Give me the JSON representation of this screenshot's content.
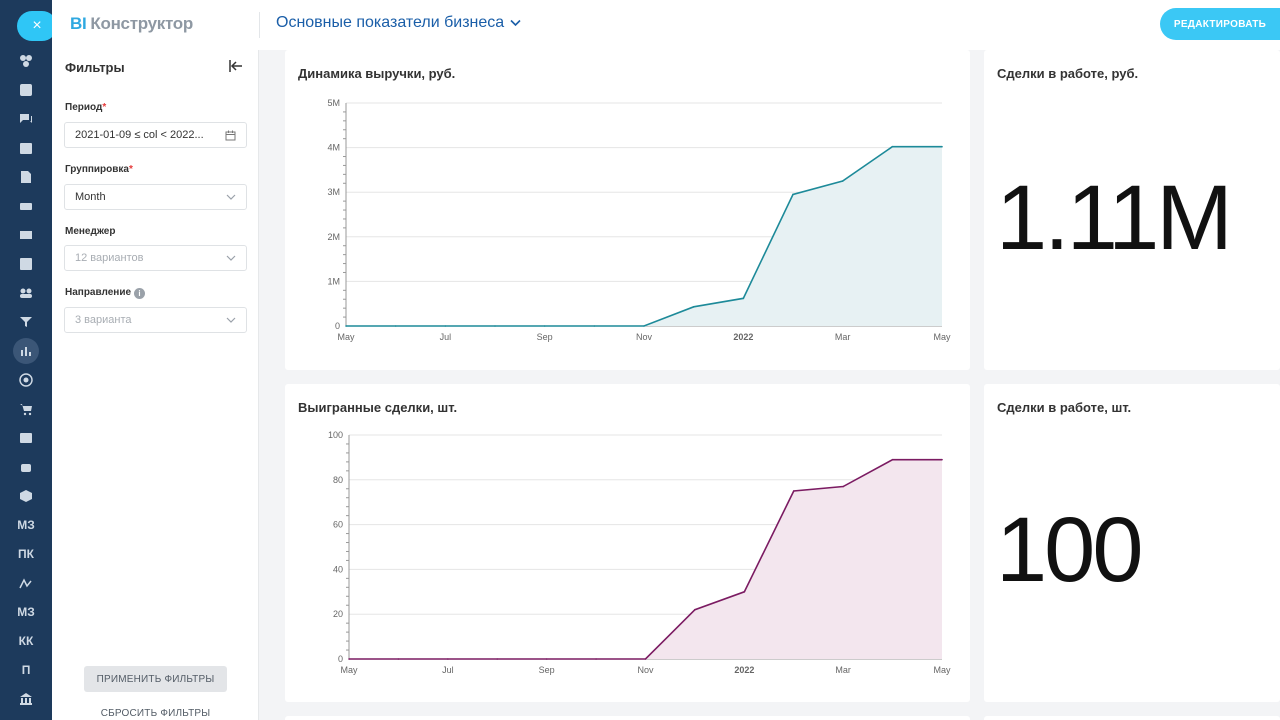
{
  "header": {
    "logo_prefix": "BI",
    "logo_text": "Конструктор",
    "dashboard_title": "Основные показатели бизнеса",
    "edit_label": "РЕДАКТИРОВАТЬ"
  },
  "rail": {
    "close_icon": "×",
    "items": [
      {
        "icon": "widgets-icon"
      },
      {
        "icon": "feed-icon"
      },
      {
        "icon": "chat-icon"
      },
      {
        "icon": "calendar-icon"
      },
      {
        "icon": "document-icon"
      },
      {
        "icon": "drive-icon"
      },
      {
        "icon": "mail-icon"
      },
      {
        "icon": "tasks-icon"
      },
      {
        "icon": "groups-icon"
      },
      {
        "icon": "funnel-icon"
      },
      {
        "icon": "analytics-icon"
      },
      {
        "icon": "target-icon"
      },
      {
        "icon": "cart-icon"
      },
      {
        "icon": "contact-card-icon"
      },
      {
        "icon": "robot-icon"
      },
      {
        "icon": "box-icon"
      },
      {
        "label": "МЗ"
      },
      {
        "label": "ПК"
      },
      {
        "icon": "signature-icon"
      },
      {
        "label": "МЗ"
      },
      {
        "label": "КК"
      },
      {
        "label": "П"
      },
      {
        "icon": "bank-icon"
      }
    ]
  },
  "filters": {
    "title": "Фильтры",
    "period_label": "Период",
    "period_value": "2021-01-09 ≤ col < 2022...",
    "grouping_label": "Группировка",
    "grouping_value": "Month",
    "manager_label": "Менеджер",
    "manager_placeholder": "12 вариантов",
    "direction_label": "Направление",
    "direction_placeholder": "3 варианта",
    "apply_label": "ПРИМЕНИТЬ ФИЛЬТРЫ",
    "reset_label": "СБРОСИТЬ ФИЛЬТРЫ"
  },
  "cards": {
    "revenue_kpi": {
      "title": "Сделки в работе, руб.",
      "value": "1.11M"
    },
    "deals_kpi": {
      "title": "Сделки в работе, шт.",
      "value": "100"
    }
  },
  "chart_data": [
    {
      "type": "area",
      "title": "Динамика выручки, руб.",
      "x": [
        "2021-05",
        "2021-06",
        "2021-07",
        "2021-08",
        "2021-09",
        "2021-10",
        "2021-11",
        "2021-12",
        "2022-01",
        "2022-02",
        "2022-03",
        "2022-04",
        "2022-05"
      ],
      "values": [
        0,
        0,
        0,
        0,
        0,
        0,
        0,
        430000,
        620000,
        2950000,
        3250000,
        4020000,
        4020000
      ],
      "ylim": [
        0,
        5000000
      ],
      "yticks": [
        0,
        1000000,
        2000000,
        3000000,
        4000000,
        5000000
      ],
      "ytick_labels": [
        "0",
        "1M",
        "2M",
        "3M",
        "4M",
        "5M"
      ],
      "xtick_labels": [
        {
          "x": "2021-05",
          "label": "May"
        },
        {
          "x": "2021-07",
          "label": "Jul"
        },
        {
          "x": "2021-09",
          "label": "Sep"
        },
        {
          "x": "2021-11",
          "label": "Nov"
        },
        {
          "x": "2022-01",
          "label": "2022",
          "bold": true
        },
        {
          "x": "2022-03",
          "label": "Mar"
        },
        {
          "x": "2022-05",
          "label": "May"
        }
      ],
      "color": "#1d8a99",
      "fill": "#e7f1f3",
      "grid": true
    },
    {
      "type": "area",
      "title": "Выигранные сделки, шт.",
      "x": [
        "2021-05",
        "2021-06",
        "2021-07",
        "2021-08",
        "2021-09",
        "2021-10",
        "2021-11",
        "2021-12",
        "2022-01",
        "2022-02",
        "2022-03",
        "2022-04",
        "2022-05"
      ],
      "values": [
        0,
        0,
        0,
        0,
        0,
        0,
        0,
        22,
        30,
        75,
        77,
        89,
        89
      ],
      "ylim": [
        0,
        100
      ],
      "yticks": [
        0,
        20,
        40,
        60,
        80,
        100
      ],
      "ytick_labels": [
        "0",
        "20",
        "40",
        "60",
        "80",
        "100"
      ],
      "xtick_labels": [
        {
          "x": "2021-05",
          "label": "May"
        },
        {
          "x": "2021-07",
          "label": "Jul"
        },
        {
          "x": "2021-09",
          "label": "Sep"
        },
        {
          "x": "2021-11",
          "label": "Nov"
        },
        {
          "x": "2022-01",
          "label": "2022",
          "bold": true
        },
        {
          "x": "2022-03",
          "label": "Mar"
        },
        {
          "x": "2022-05",
          "label": "May"
        }
      ],
      "color": "#7b1b62",
      "fill": "#f3e6ee",
      "grid": true
    }
  ]
}
